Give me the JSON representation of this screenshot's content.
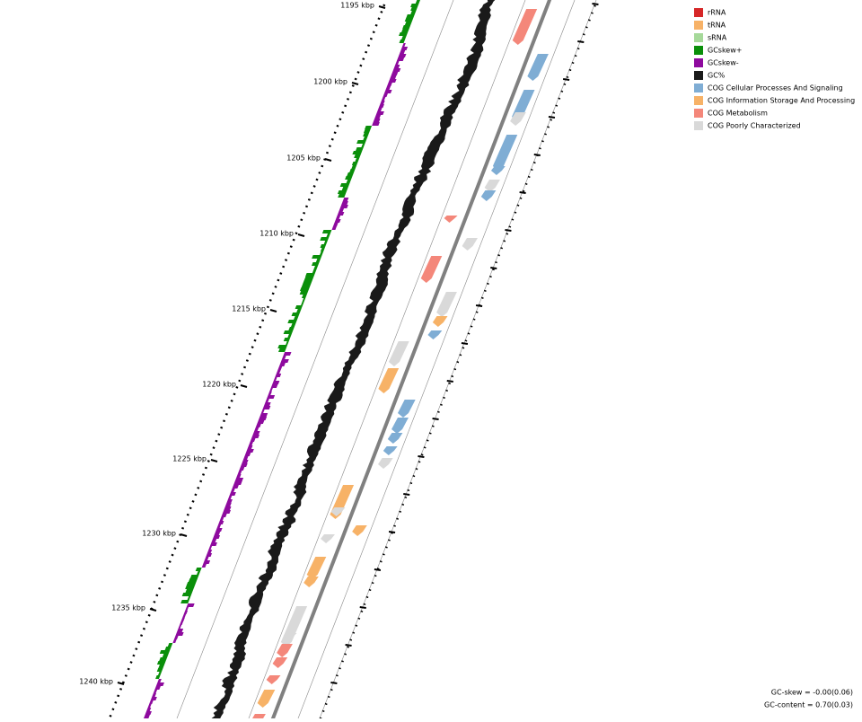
{
  "axis_labels": [
    "1195 kbp",
    "1200 kbp",
    "1205 kbp",
    "1210 kbp",
    "1215 kbp",
    "1220 kbp",
    "1225 kbp",
    "1230 kbp",
    "1235 kbp",
    "1240 kbp"
  ],
  "legend": [
    {
      "label": "rRNA",
      "color": "#d62728"
    },
    {
      "label": "tRNA",
      "color": "#f7b267"
    },
    {
      "label": "sRNA",
      "color": "#a6d99a"
    },
    {
      "label": "GCskew+",
      "color": "#0a8f0a"
    },
    {
      "label": "GCskew-",
      "color": "#8e0a9e"
    },
    {
      "label": "GC%",
      "color": "#1a1a1a"
    },
    {
      "label": "COG Cellular Processes And Signaling",
      "color": "#7fadd4"
    },
    {
      "label": "COG Information Storage And Processing",
      "color": "#f7b267"
    },
    {
      "label": "COG Metabolism",
      "color": "#f4877a"
    },
    {
      "label": "COG Poorly Characterized",
      "color": "#d9d9d9"
    }
  ],
  "stats": [
    "GC-skew = -0.00(0.06)",
    "GC-content = 0.70(0.03)"
  ]
}
